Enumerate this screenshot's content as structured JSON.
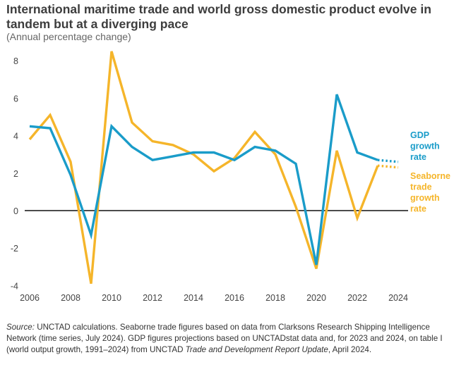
{
  "title": "International maritime trade and world gross domestic product evolve in tandem but at a diverging pace",
  "subtitle": "(Annual percentage change)",
  "source": {
    "label": "Source:",
    "text_1": " UNCTAD calculations. Seaborne trade figures based on data from Clarksons Research Shipping Intelligence Network (time series, July 2024). GDP figures projections based on UNCTADstat data and, for 2023 and 2024, on table I (world output growth, 1991–2024) from UNCTAD ",
    "title_italic": "Trade and Development Report Update",
    "text_2": ", April 2024."
  },
  "colors": {
    "gdp": "#1a9cc9",
    "seaborne": "#f5b52a",
    "zero_line": "#111111",
    "axis_text": "#444444"
  },
  "chart_data": {
    "type": "line",
    "x": [
      2006,
      2007,
      2008,
      2009,
      2010,
      2011,
      2012,
      2013,
      2014,
      2015,
      2016,
      2017,
      2018,
      2019,
      2020,
      2021,
      2022,
      2023,
      2024
    ],
    "xticks": [
      2006,
      2008,
      2010,
      2012,
      2014,
      2016,
      2018,
      2020,
      2022,
      2024
    ],
    "yticks": [
      -4,
      -2,
      0,
      2,
      4,
      6,
      8
    ],
    "xlim": [
      2006,
      2024
    ],
    "ylim": [
      -4,
      8.5
    ],
    "grid": false,
    "projection_years": [
      2023,
      2024
    ],
    "series": [
      {
        "name": "GDP growth rate",
        "legend_lines": [
          "GDP",
          "growth",
          "rate"
        ],
        "values": [
          4.5,
          4.4,
          1.9,
          -1.3,
          4.5,
          3.4,
          2.7,
          2.9,
          3.1,
          3.1,
          2.7,
          3.4,
          3.2,
          2.5,
          -2.9,
          6.2,
          3.1,
          2.7,
          2.6
        ]
      },
      {
        "name": "Seaborne trade growth rate",
        "legend_lines": [
          "Seaborne",
          "trade",
          "growth",
          "rate"
        ],
        "values": [
          3.8,
          5.1,
          2.6,
          -3.9,
          8.5,
          4.7,
          3.7,
          3.5,
          3.0,
          2.1,
          2.8,
          4.2,
          3.0,
          0.2,
          -3.1,
          3.2,
          -0.4,
          2.4,
          2.3
        ]
      }
    ]
  }
}
